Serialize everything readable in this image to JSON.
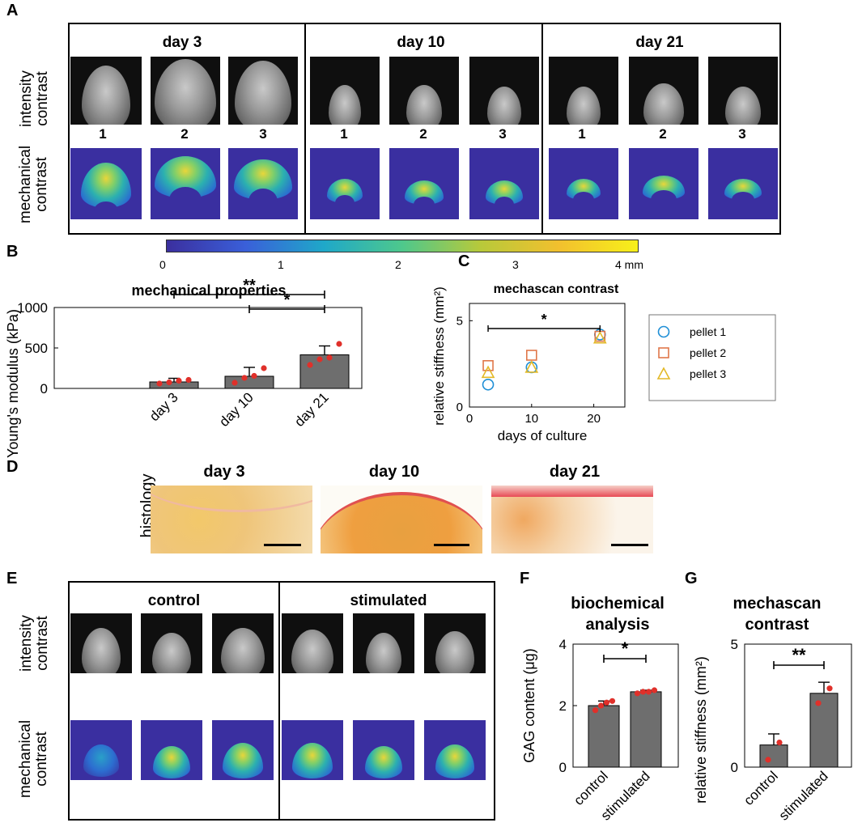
{
  "panels": {
    "A": "A",
    "B": "B",
    "C": "C",
    "D": "D",
    "E": "E",
    "F": "F",
    "G": "G"
  },
  "panelA": {
    "days": [
      "day 3",
      "day 10",
      "day 21"
    ],
    "row_labels": [
      "intensity contrast",
      "mechanical contrast"
    ],
    "row_label_lines": [
      [
        "intensity",
        "contrast"
      ],
      [
        "mechanical",
        "contrast"
      ]
    ],
    "pellet_numbers": [
      "1",
      "2",
      "3"
    ]
  },
  "colorbar": {
    "ticks": [
      "0",
      "1",
      "2",
      "3",
      "4 mm"
    ],
    "colors": [
      "#3b2f9e",
      "#3a5fd9",
      "#1fa8c9",
      "#4ec88c",
      "#b8c93a",
      "#f2c02e",
      "#f7f01a"
    ]
  },
  "chart_data": [
    {
      "id": "B",
      "type": "bar",
      "title": "mechanical properties",
      "ylabel": "Young's modulus (kPa)",
      "categories": [
        "day 3",
        "day 10",
        "day 21"
      ],
      "values": [
        80,
        150,
        415
      ],
      "errors": [
        45,
        110,
        110
      ],
      "points": [
        [
          60,
          75,
          95,
          105
        ],
        [
          70,
          130,
          155,
          250
        ],
        [
          290,
          360,
          380,
          550
        ]
      ],
      "ylim": [
        0,
        1000
      ],
      "yticks": [
        "0",
        "500",
        "1000"
      ],
      "significance": [
        {
          "from": "day 3",
          "to": "day 21",
          "label": "**"
        },
        {
          "from": "day 10",
          "to": "day 21",
          "label": "*"
        }
      ],
      "bar_color": "#6e6e6e",
      "point_color": "#e0302a"
    },
    {
      "id": "C",
      "type": "scatter",
      "title": "mechascan contrast",
      "xlabel": "days of culture",
      "ylabel": "relative stiffness (mm²)",
      "xlim": [
        0,
        25
      ],
      "ylim": [
        0,
        6
      ],
      "xticks": [
        "0",
        "10",
        "20"
      ],
      "yticks": [
        "0",
        "5"
      ],
      "series": [
        {
          "name": "pellet 1",
          "marker": "circle",
          "color": "#1f8fd6",
          "x": [
            3,
            10,
            21
          ],
          "y": [
            1.3,
            2.3,
            4.2
          ]
        },
        {
          "name": "pellet 2",
          "marker": "square",
          "color": "#e0774a",
          "x": [
            3,
            10,
            21
          ],
          "y": [
            2.4,
            3.0,
            4.1
          ]
        },
        {
          "name": "pellet 3",
          "marker": "triangle",
          "color": "#e3b928",
          "x": [
            3,
            10,
            21
          ],
          "y": [
            2.0,
            2.3,
            4.0
          ]
        }
      ],
      "significance": [
        {
          "from": 3,
          "to": 21,
          "label": "*"
        }
      ]
    },
    {
      "id": "F",
      "type": "bar",
      "title": "biochemical analysis",
      "title_lines": [
        "biochemical",
        "analysis"
      ],
      "ylabel": "GAG content (μg)",
      "categories": [
        "control",
        "stimulated"
      ],
      "values": [
        2.0,
        2.45
      ],
      "errors": [
        0.15,
        0.05
      ],
      "points": [
        [
          1.85,
          2.0,
          2.1,
          2.15
        ],
        [
          2.4,
          2.45,
          2.45,
          2.5
        ]
      ],
      "ylim": [
        0,
        4
      ],
      "yticks": [
        "0",
        "2",
        "4"
      ],
      "significance": [
        {
          "from": "control",
          "to": "stimulated",
          "label": "*"
        }
      ],
      "bar_color": "#6e6e6e",
      "point_color": "#e0302a"
    },
    {
      "id": "G",
      "type": "bar",
      "title": "mechascan contrast",
      "title_lines": [
        "mechascan",
        "contrast"
      ],
      "ylabel": "relative stiffness (mm²)",
      "categories": [
        "control",
        "stimulated"
      ],
      "values": [
        0.9,
        3.0
      ],
      "errors": [
        0.45,
        0.45
      ],
      "points": [
        [
          0.3,
          1.0
        ],
        [
          2.6,
          3.2
        ]
      ],
      "ylim": [
        0,
        5
      ],
      "yticks": [
        "0",
        "5"
      ],
      "significance": [
        {
          "from": "control",
          "to": "stimulated",
          "label": "**"
        }
      ],
      "bar_color": "#6e6e6e",
      "point_color": "#e0302a"
    }
  ],
  "panelD": {
    "row_label": "histology",
    "days": [
      "day 3",
      "day 10",
      "day 21"
    ]
  },
  "panelE": {
    "groups": [
      "control",
      "stimulated"
    ],
    "row_label_lines": [
      [
        "intensity",
        "contrast"
      ],
      [
        "mechanical",
        "contrast"
      ]
    ]
  }
}
